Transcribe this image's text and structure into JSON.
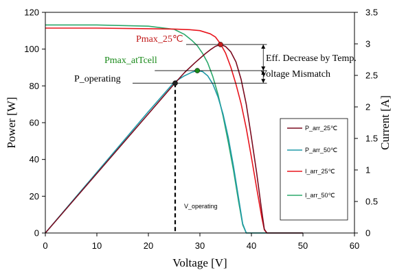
{
  "chart_data": {
    "type": "line",
    "xlabel": "Voltage [V]",
    "ylabel": "Power [W]",
    "y2label": "Current [A]",
    "xlim": [
      0,
      60
    ],
    "ylim": [
      0,
      120
    ],
    "y2lim": [
      0,
      3.5
    ],
    "x_ticks": [
      0,
      10,
      20,
      30,
      40,
      50,
      60
    ],
    "y_ticks": [
      0,
      20,
      40,
      60,
      80,
      100,
      120
    ],
    "y2_ticks": [
      "0",
      "0.5",
      "1",
      "1.5",
      "2",
      "2.5",
      "3",
      "3.5"
    ],
    "grid": false,
    "legend_position": "right",
    "colors": {
      "P_arr_25": "#7a0a1e",
      "P_arr_50": "#1f9aa8",
      "I_arr_25": "#e8141c",
      "I_arr_50": "#2aa86a",
      "annot_green": "#1a8a1a",
      "annot_red": "#c01818"
    },
    "series": [
      {
        "name": "P_arr_25℃",
        "axis": "left",
        "x": [
          0,
          5,
          10,
          15,
          20,
          25,
          27,
          29,
          31,
          32,
          33,
          34,
          35,
          36,
          37,
          38,
          39,
          40,
          41,
          42,
          42.5,
          43,
          50
        ],
        "y": [
          0,
          16.2,
          32.4,
          48.6,
          64.8,
          81,
          87.2,
          92.5,
          97.4,
          99.6,
          101.5,
          102.5,
          101.4,
          98.5,
          93,
          83.5,
          70,
          52,
          33,
          12,
          2,
          0,
          0
        ]
      },
      {
        "name": "P_arr_50℃",
        "axis": "left",
        "x": [
          0,
          5,
          10,
          15,
          20,
          25,
          27,
          28.5,
          29.5,
          30.5,
          31.5,
          32.5,
          33.5,
          34.5,
          35.5,
          36.5,
          37.5,
          38.3,
          39,
          45,
          50
        ],
        "y": [
          0,
          16.5,
          33,
          49.5,
          66,
          82,
          85.5,
          87.5,
          88.3,
          87.8,
          85.5,
          81,
          74,
          64.5,
          52,
          36.5,
          19,
          5,
          0,
          0,
          0
        ]
      },
      {
        "name": "I_arr_25℃",
        "axis": "right",
        "x": [
          0,
          10,
          20,
          25,
          28,
          30,
          32,
          33,
          34,
          35,
          36,
          37,
          38,
          39,
          40,
          41,
          42,
          42.5,
          43,
          50
        ],
        "y": [
          3.25,
          3.25,
          3.24,
          3.235,
          3.225,
          3.21,
          3.16,
          3.11,
          3.0,
          2.85,
          2.63,
          2.36,
          2.05,
          1.66,
          1.2,
          0.72,
          0.25,
          0.05,
          0,
          0
        ]
      },
      {
        "name": "I_arr_50℃",
        "axis": "right",
        "x": [
          0,
          10,
          20,
          25,
          27,
          28.5,
          29.5,
          30.5,
          31.5,
          32.5,
          33.5,
          34.5,
          35.5,
          36.5,
          37.5,
          38.3,
          39,
          45,
          50
        ],
        "y": [
          3.3,
          3.3,
          3.28,
          3.23,
          3.15,
          3.05,
          2.97,
          2.85,
          2.7,
          2.48,
          2.2,
          1.85,
          1.44,
          1.0,
          0.5,
          0.13,
          0,
          0,
          0
        ]
      }
    ],
    "points": [
      {
        "x": 34,
        "y": 102.5,
        "color": "#c41e1e"
      },
      {
        "x": 29.5,
        "y": 88.3,
        "color": "#1a8a1a"
      },
      {
        "x": 25.2,
        "y": 81.5,
        "color": "#222222"
      }
    ],
    "annotations": {
      "pmax_25": "Pmax_25℃",
      "pmax_atTcell": "Pmax_atTcell",
      "p_operating": "P_operating",
      "v_operating": "V_operating",
      "eff_decrease": "Eff. Decrease by Temp.",
      "voltage_mismatch": "Voltage Mismatch"
    },
    "operating_voltage": 25.2
  }
}
